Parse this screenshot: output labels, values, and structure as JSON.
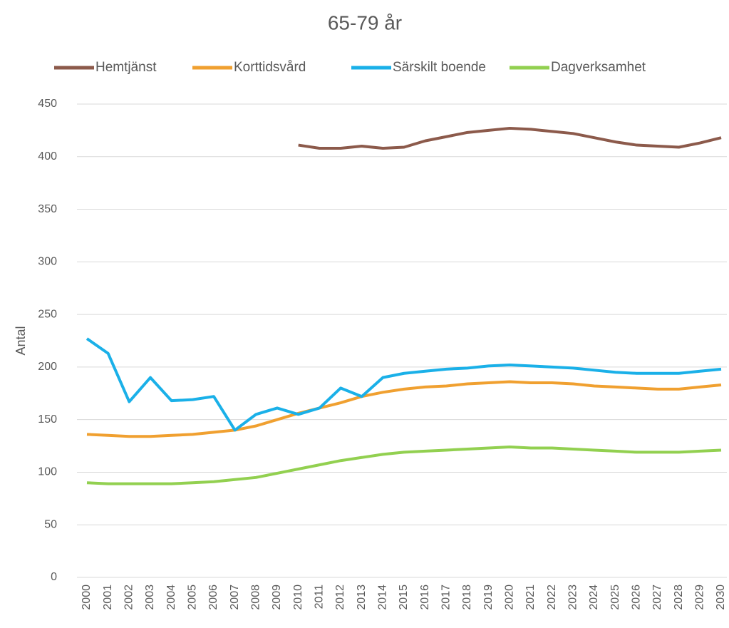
{
  "chart_data": {
    "type": "line",
    "title": "65-79 år",
    "y_label": "Antal",
    "categories": [
      "2000",
      "2001",
      "2002",
      "2003",
      "2004",
      "2005",
      "2006",
      "2007",
      "2008",
      "2009",
      "2010",
      "2011",
      "2012",
      "2013",
      "2014",
      "2015",
      "2016",
      "2017",
      "2018",
      "2019",
      "2020",
      "2021",
      "2022",
      "2023",
      "2024",
      "2025",
      "2026",
      "2027",
      "2028",
      "2029",
      "2030"
    ],
    "series": [
      {
        "name": "Hemtjänst",
        "color": "#8c5a4b",
        "values": [
          null,
          null,
          null,
          null,
          null,
          null,
          null,
          null,
          null,
          null,
          411,
          408,
          408,
          410,
          408,
          409,
          415,
          419,
          423,
          425,
          427,
          426,
          424,
          422,
          418,
          414,
          411,
          410,
          409,
          413,
          418
        ]
      },
      {
        "name": "Korttidsvård",
        "color": "#f0a030",
        "values": [
          136,
          135,
          134,
          134,
          135,
          136,
          138,
          140,
          144,
          150,
          156,
          161,
          166,
          172,
          176,
          179,
          181,
          182,
          184,
          185,
          186,
          185,
          185,
          184,
          182,
          181,
          180,
          179,
          179,
          181,
          183
        ]
      },
      {
        "name": "Särskilt boende",
        "color": "#1ab0e8",
        "values": [
          227,
          213,
          167,
          190,
          168,
          169,
          172,
          140,
          155,
          161,
          155,
          161,
          180,
          172,
          190,
          194,
          196,
          198,
          199,
          201,
          202,
          201,
          200,
          199,
          197,
          195,
          194,
          194,
          194,
          196,
          198
        ]
      },
      {
        "name": "Dagverksamhet",
        "color": "#92d050",
        "values": [
          90,
          89,
          89,
          89,
          89,
          90,
          91,
          93,
          95,
          99,
          103,
          107,
          111,
          114,
          117,
          119,
          120,
          121,
          122,
          123,
          124,
          123,
          123,
          122,
          121,
          120,
          119,
          119,
          119,
          120,
          121
        ]
      }
    ],
    "ylim": [
      0,
      450
    ],
    "yticks": [
      0,
      50,
      100,
      150,
      200,
      250,
      300,
      350,
      400,
      450
    ],
    "grid": true,
    "legend": "top"
  }
}
